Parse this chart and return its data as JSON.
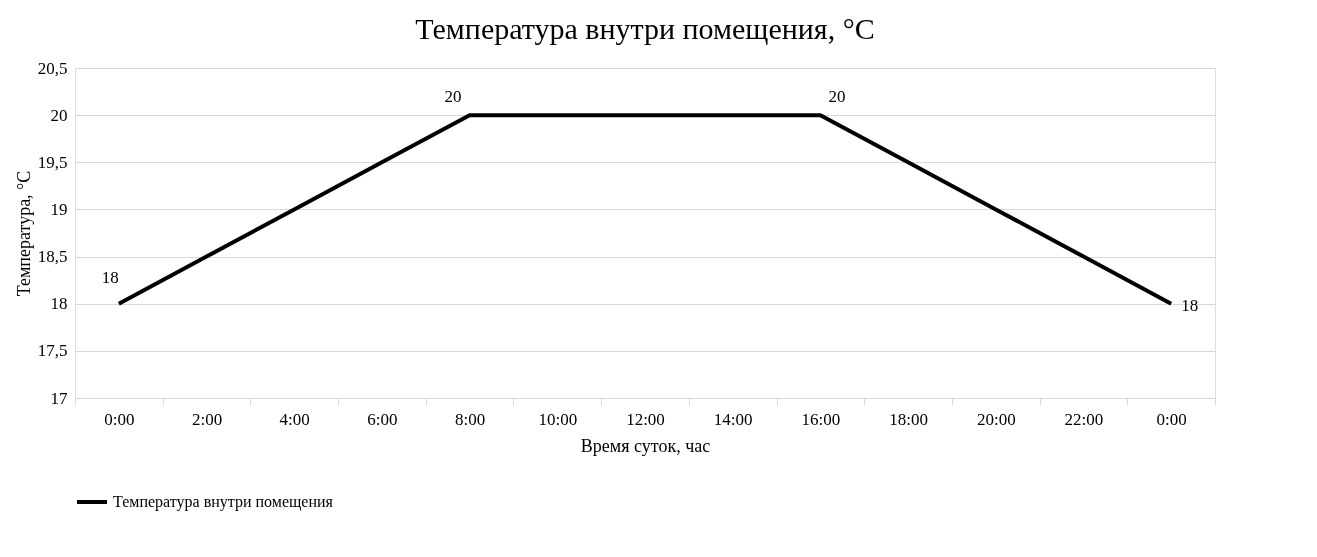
{
  "chart_data": {
    "type": "line",
    "title": "Температура внутри помещения, °C",
    "xlabel": "Время суток, час",
    "ylabel": "Температура, °C",
    "categories": [
      "0:00",
      "2:00",
      "4:00",
      "6:00",
      "8:00",
      "10:00",
      "12:00",
      "14:00",
      "16:00",
      "18:00",
      "20:00",
      "22:00",
      "0:00"
    ],
    "series": [
      {
        "name": "Температура внутри помещения",
        "color": "#000000",
        "values": [
          18,
          18.5,
          19,
          19.5,
          20,
          20,
          20,
          20,
          20,
          19.5,
          19,
          18.5,
          18
        ],
        "value_labels": [
          "18",
          null,
          null,
          null,
          "20",
          null,
          null,
          null,
          "20",
          null,
          null,
          null,
          "18"
        ]
      }
    ],
    "ylim": [
      17,
      20.5
    ],
    "yticks": [
      17,
      {
        "value": 17.5,
        "label": "17,5"
      },
      18,
      {
        "value": 18.5,
        "label": "18,5"
      },
      19,
      {
        "value": 19.5,
        "label": "19,5"
      },
      20,
      {
        "value": 20.5,
        "label": "20,5"
      }
    ],
    "grid": "y",
    "legend": "bottom",
    "marker": "none",
    "line_style": "solid"
  }
}
